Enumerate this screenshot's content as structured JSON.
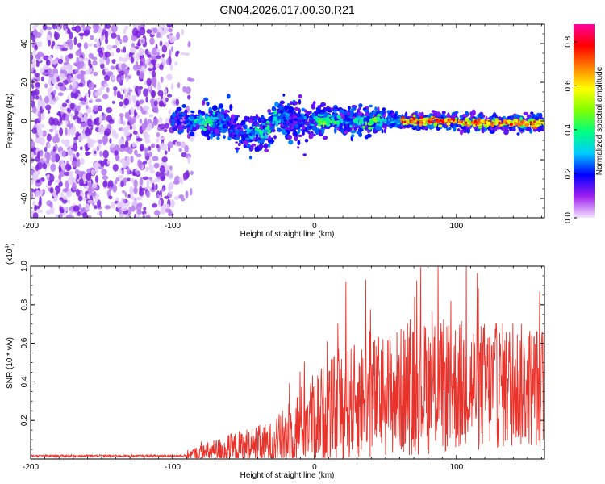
{
  "title": "GN04.2026.017.00.30.R21",
  "colors": {
    "background": "#ffffff",
    "frame": "#000000",
    "snr_line": "#e8322a",
    "scatter_sparse": "#8a3ae0",
    "scatter_dense": "#3a3af0"
  },
  "chart_data": [
    {
      "type": "heatmap",
      "name": "spectrogram",
      "xlabel": "Height of straight line (km)",
      "ylabel": "Frequency (Hz)",
      "xlim": [
        -200,
        162
      ],
      "ylim": [
        -50,
        50
      ],
      "xticks": [
        -200,
        -100,
        0,
        100
      ],
      "xtick_labels": [
        "-200",
        "-100",
        "0",
        "100"
      ],
      "yticks": [
        -40,
        -20,
        0,
        20,
        40
      ],
      "ytick_labels": [
        "-40",
        "-20",
        "0",
        "20",
        "40"
      ],
      "description_values": {
        "noise_region_x": [
          -200,
          -85
        ],
        "signal_region_x": [
          -100,
          162
        ],
        "signal_center_frequency_hz": 0,
        "signal_half_width_hz_near": 6,
        "signal_half_width_hz_far": 3,
        "peak_amplitude_region_x": [
          60,
          162
        ]
      },
      "colorbar": {
        "label": "Normalized spectral amplitude",
        "range": [
          0.0,
          0.88
        ],
        "ticks": [
          0.0,
          0.2,
          0.4,
          0.6,
          0.8
        ],
        "tick_labels": [
          "0.0",
          "0.2",
          "0.4",
          "0.6",
          "0.8"
        ],
        "colormap": [
          "#f3e6ff",
          "#a020f0",
          "#0000ff",
          "#00ccff",
          "#00ff80",
          "#80ff00",
          "#ffff00",
          "#ff8000",
          "#ff0000",
          "#ff00a0"
        ]
      }
    },
    {
      "type": "line",
      "name": "snr",
      "xlabel": "Height of straight line (km)",
      "ylabel": "SNR (10 * v/v)",
      "y_multiplier": "(x10",
      "y_multiplier_exp": "4",
      "y_multiplier_close": ")",
      "xlim": [
        -200,
        162
      ],
      "ylim": [
        0,
        1.0
      ],
      "xticks": [
        -200,
        -100,
        0,
        100
      ],
      "xtick_labels": [
        "-200",
        "-100",
        "0",
        "100"
      ],
      "yticks": [
        0.2,
        0.4,
        0.6,
        0.8,
        1.0
      ],
      "ytick_labels": [
        "0.2",
        "0.4",
        "0.6",
        "0.8",
        "1.0"
      ],
      "envelope": {
        "x": [
          -200,
          -100,
          -90,
          -70,
          -50,
          -30,
          -20,
          -10,
          0,
          10,
          20,
          40,
          60,
          80,
          100,
          130,
          162
        ],
        "baseline": [
          0.01,
          0.01,
          0.02,
          0.04,
          0.06,
          0.08,
          0.12,
          0.18,
          0.22,
          0.25,
          0.28,
          0.32,
          0.35,
          0.37,
          0.38,
          0.38,
          0.38
        ],
        "spread": [
          0.01,
          0.01,
          0.03,
          0.08,
          0.12,
          0.14,
          0.2,
          0.25,
          0.3,
          0.33,
          0.36,
          0.4,
          0.42,
          0.44,
          0.44,
          0.42,
          0.4
        ]
      },
      "notable_peaks": [
        {
          "x": 17,
          "y": 0.57
        },
        {
          "x": 22,
          "y": 0.92
        },
        {
          "x": 36,
          "y": 0.93
        },
        {
          "x": 87,
          "y": 1.0
        },
        {
          "x": 107,
          "y": 1.0
        },
        {
          "x": 96,
          "y": 0.82
        }
      ]
    }
  ]
}
